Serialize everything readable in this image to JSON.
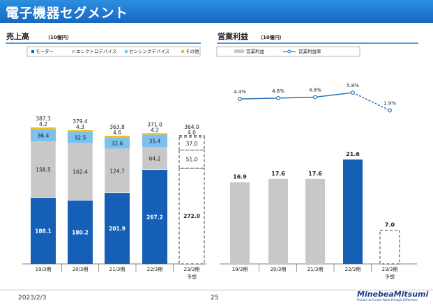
{
  "page": {
    "title": "電子機器セグメント",
    "date": "2023/2/3",
    "page_number": "25",
    "logo_text": "MinebeaMitsumi",
    "logo_tagline": "Passion to Create Value through Difference"
  },
  "colors": {
    "header": "#1f7ad6",
    "motor": "#1560b6",
    "electro": "#c8c8c8",
    "sensing": "#7cc0ee",
    "other": "#f0c020",
    "op_income": "#c8c8c8",
    "op_income_highlight": "#1560b6",
    "margin_line": "#2e75b6"
  },
  "chart_data": [
    {
      "type": "bar",
      "stacked": true,
      "title": "売上高",
      "unit": "（10億円）",
      "categories": [
        "19/3期",
        "20/3期",
        "21/3期",
        "22/3期",
        "23/3期"
      ],
      "forecast_label": "予想",
      "forecast_index": 4,
      "series": [
        {
          "name": "モーター",
          "key": "motor",
          "values": [
            188.1,
            180.2,
            201.9,
            267.2,
            272.0
          ]
        },
        {
          "name": "エレクトロデバイス",
          "key": "electro",
          "values": [
            158.5,
            162.4,
            124.7,
            64.2,
            51.0
          ]
        },
        {
          "name": "センシングデバイス",
          "key": "sensing",
          "values": [
            36.4,
            32.5,
            32.6,
            35.4,
            37.0
          ]
        },
        {
          "name": "その他",
          "key": "other",
          "values": [
            4.2,
            4.3,
            4.6,
            4.2,
            4.0
          ]
        }
      ],
      "totals": [
        387.3,
        379.4,
        363.8,
        371.0,
        364.0
      ],
      "value_labels": {
        "motor": [
          "188.1",
          "180.2",
          "201.9",
          "267.2",
          "272.0"
        ],
        "electro": [
          "158.5",
          "162.4",
          "124.7",
          "64.2",
          "51.0"
        ],
        "sensing": [
          "36.4",
          "32.5",
          "32.6",
          "35.4",
          "37.0"
        ],
        "other": [
          "4.2",
          "4.3",
          "4.6",
          "4.2",
          "4.0"
        ],
        "totals": [
          "387.3",
          "379.4",
          "363.8",
          "371.0",
          "364.0"
        ]
      },
      "ylim": [
        0,
        420
      ],
      "legend_position": "top",
      "grid": false
    },
    {
      "type": "bar",
      "title": "営業利益",
      "unit": "（10億円）",
      "categories": [
        "19/3期",
        "20/3期",
        "21/3期",
        "22/3期",
        "23/3期"
      ],
      "forecast_label": "予想",
      "forecast_index": 4,
      "highlight_index": 3,
      "series": [
        {
          "name": "営業利益",
          "values": [
            16.9,
            17.6,
            17.6,
            21.6,
            7.0
          ]
        }
      ],
      "value_labels": [
        "16.9",
        "17.6",
        "17.6",
        "21.6",
        "7.0"
      ],
      "ylim": [
        0,
        25
      ],
      "line_series": {
        "name": "営業利益率",
        "values": [
          4.4,
          4.6,
          4.8,
          5.8,
          1.9
        ],
        "labels": [
          "4.4%",
          "4.6%",
          "4.8%",
          "5.8%",
          "1.9%"
        ],
        "ylim": [
          -15,
          10
        ]
      },
      "legend_position": "top",
      "grid": false
    }
  ]
}
